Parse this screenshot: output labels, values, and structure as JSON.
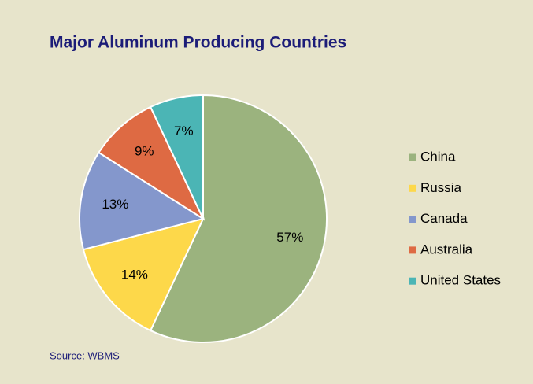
{
  "chart_data": {
    "type": "pie",
    "title": "Major Aluminum Producing Countries",
    "source": "Source: WBMS",
    "categories": [
      "China",
      "Russia",
      "Canada",
      "Australia",
      "United States"
    ],
    "values": [
      57,
      14,
      13,
      9,
      7
    ],
    "value_labels": [
      "57%",
      "14%",
      "13%",
      "9%",
      "7%"
    ],
    "colors": [
      "#9bb37e",
      "#fdd84a",
      "#8497cc",
      "#de6a43",
      "#4bb5b5"
    ],
    "legend": "right"
  }
}
